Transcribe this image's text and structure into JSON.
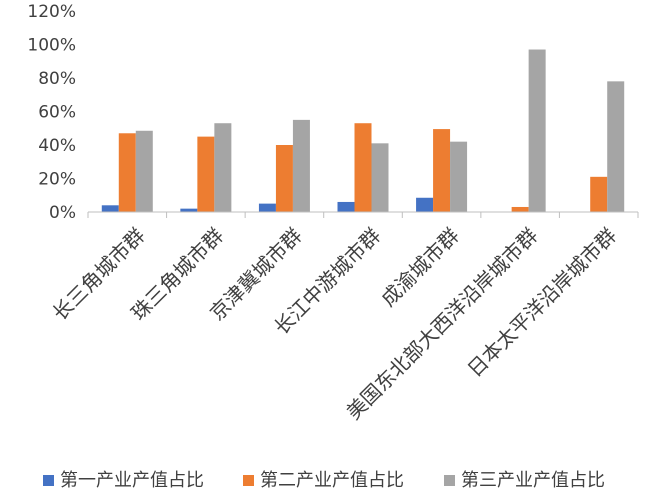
{
  "chart_data": {
    "type": "bar",
    "categories": [
      "长三角城市群",
      "珠三角城市群",
      "京津冀城市群",
      "长江中游城市群",
      "成渝城市群",
      "美国东北部大西洋沿岸城市群",
      "日本太平洋沿岸城市群"
    ],
    "series": [
      {
        "name": "第一产业产值占比",
        "color": "#4472C4",
        "values": [
          4,
          2,
          5,
          6,
          8.5,
          0,
          0
        ]
      },
      {
        "name": "第二产业产值占比",
        "color": "#ED7D31",
        "values": [
          47,
          45,
          40,
          53,
          49.5,
          3,
          21
        ]
      },
      {
        "name": "第三产业产值占比",
        "color": "#A5A5A5",
        "values": [
          48.5,
          53,
          55,
          41,
          42,
          97,
          78
        ]
      }
    ],
    "y_ticks": [
      "0%",
      "20%",
      "40%",
      "60%",
      "80%",
      "100%",
      "120%"
    ],
    "ylim": [
      0,
      120
    ],
    "grid": false,
    "legend_position": "bottom"
  }
}
